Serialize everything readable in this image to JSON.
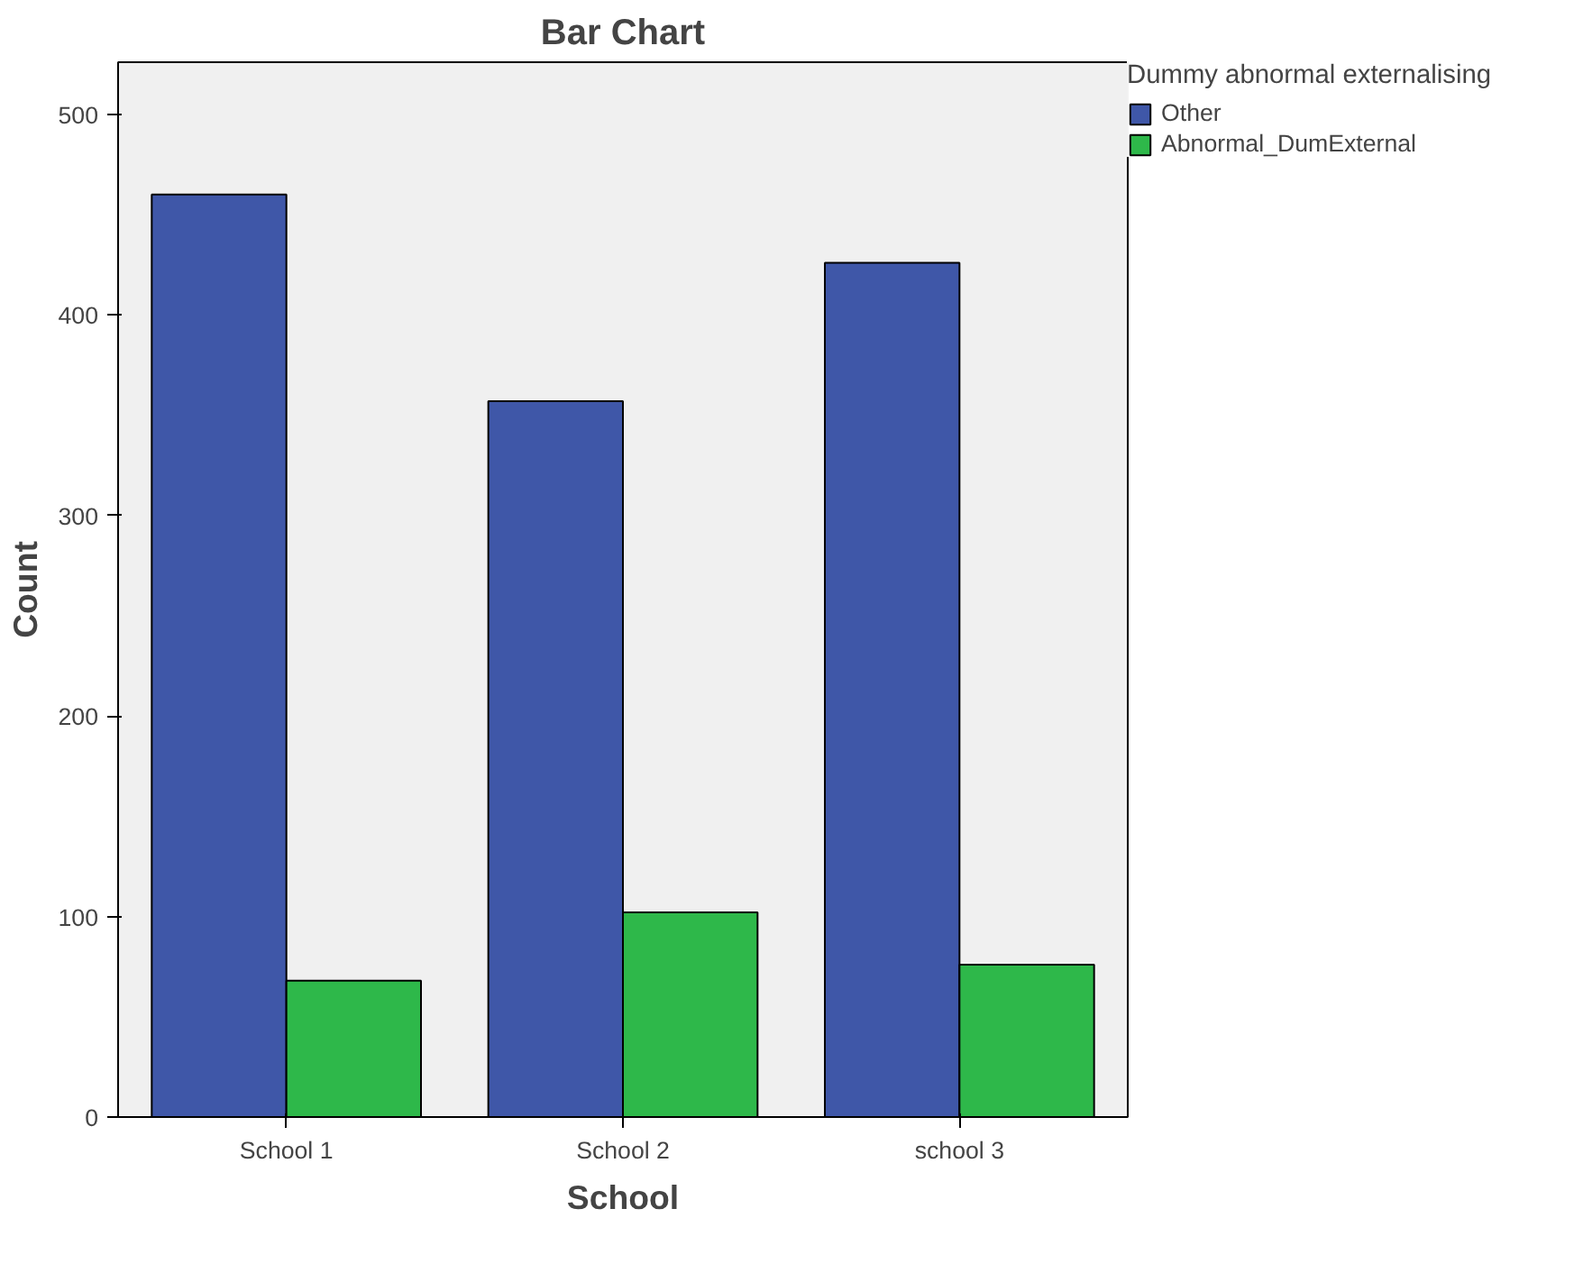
{
  "chart_data": {
    "type": "bar",
    "title": "Bar Chart",
    "xlabel": "School",
    "ylabel": "Count",
    "legend_title": "Dummy abnormal externalising",
    "categories": [
      "School 1",
      "School 2",
      "school 3"
    ],
    "series": [
      {
        "name": "Other",
        "color": "#3f57a8",
        "values": [
          460,
          357,
          426
        ]
      },
      {
        "name": "Abnormal_DumExternal",
        "color": "#2eb84a",
        "values": [
          68,
          102,
          76
        ]
      }
    ],
    "ylim": [
      0,
      526
    ],
    "yticks": [
      0,
      100,
      200,
      300,
      400,
      500
    ],
    "grid": false,
    "legend": "top right"
  }
}
